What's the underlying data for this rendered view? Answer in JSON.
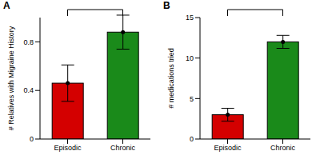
{
  "chart_data": [
    {
      "type": "bar",
      "title": "A",
      "categories": [
        "Episodic",
        "Chronic"
      ],
      "values": [
        0.46,
        0.88
      ],
      "errors": [
        0.15,
        0.14
      ],
      "colors": [
        "#d40000",
        "#1a8a1a"
      ],
      "ylabel": "# Relatives with Migraine History",
      "ylim": [
        0,
        1
      ],
      "yticks": [
        0,
        0.4,
        0.8
      ]
    },
    {
      "type": "bar",
      "title": "B",
      "categories": [
        "Episodic",
        "Chronic"
      ],
      "values": [
        3,
        12
      ],
      "errors": [
        0.8,
        0.8
      ],
      "colors": [
        "#d40000",
        "#1a8a1a"
      ],
      "ylabel": "# medications tried",
      "ylim": [
        0,
        15
      ],
      "yticks": [
        0,
        5,
        10,
        15
      ]
    }
  ]
}
